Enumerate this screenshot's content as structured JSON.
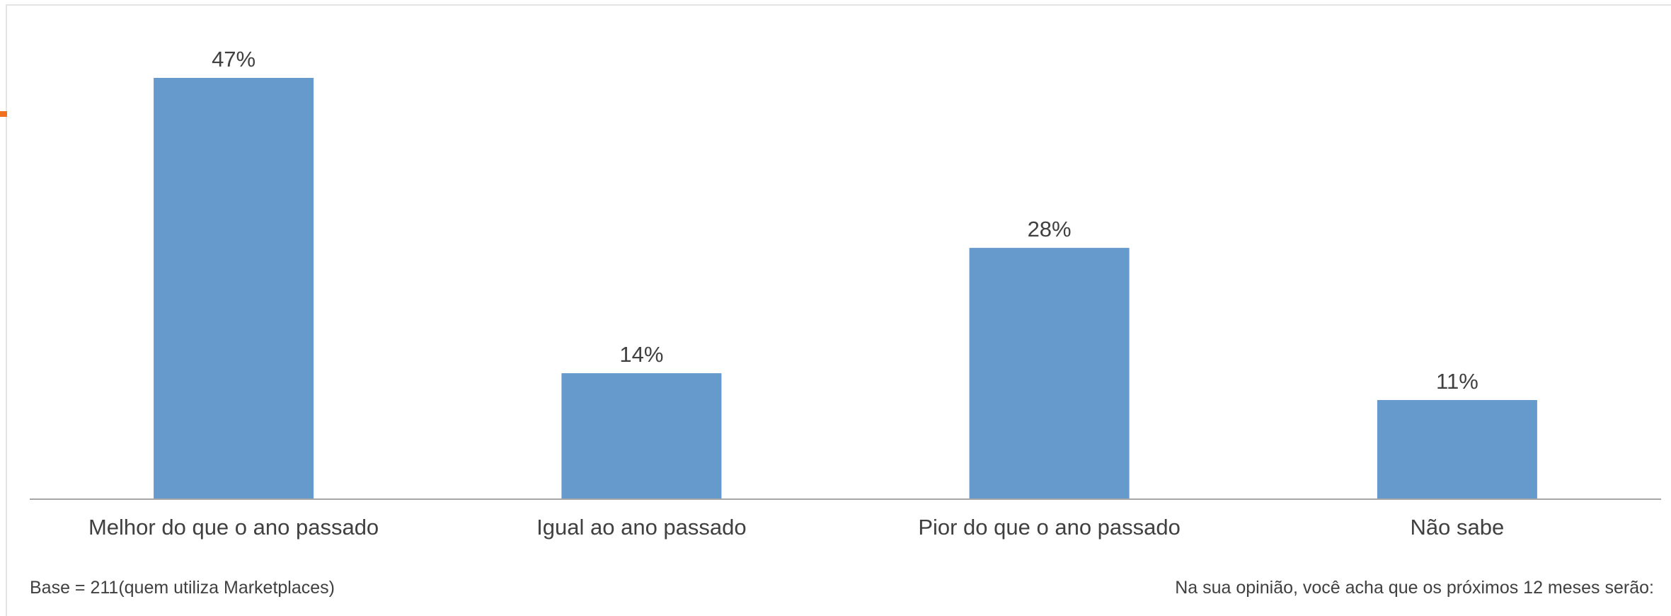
{
  "chart_data": {
    "type": "bar",
    "categories": [
      "Melhor do que o ano passado",
      "Igual ao ano passado",
      "Pior do que o ano passado",
      "Não sabe"
    ],
    "values": [
      47,
      14,
      28,
      11
    ],
    "value_labels": [
      "47%",
      "14%",
      "28%",
      "11%"
    ],
    "ylim": [
      0,
      47
    ],
    "grid": false,
    "legend": "none"
  },
  "colors": {
    "bar": "#6699cc",
    "axis": "#a6a6a6",
    "text": "#404040",
    "accent": "#f07020"
  },
  "footer": {
    "base": "Base = 211(quem utiliza Marketplaces)",
    "question": "Na sua opinião, você acha que os próximos 12 meses serão:"
  }
}
